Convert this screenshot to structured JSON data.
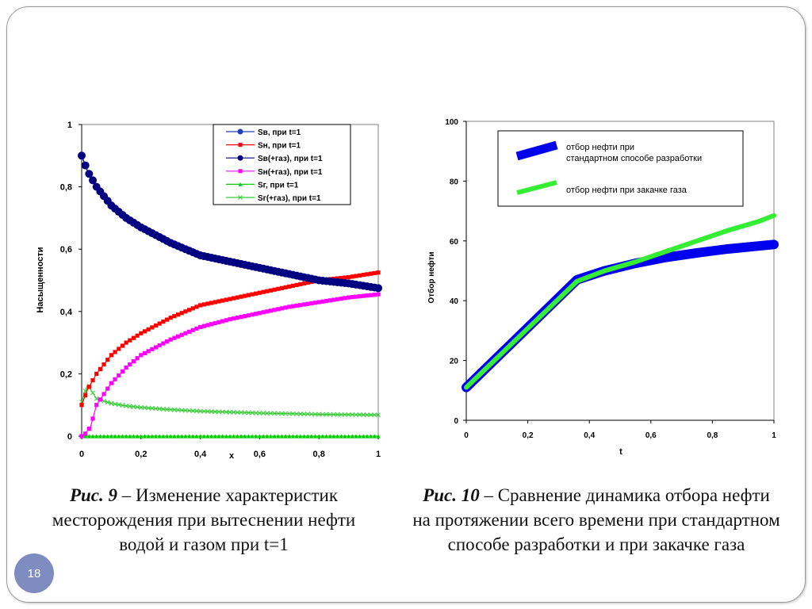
{
  "chart_data": [
    {
      "type": "line",
      "title": "",
      "xlabel": "x",
      "ylabel": "Насыщенности",
      "xlim": [
        0,
        1
      ],
      "ylim": [
        0,
        1
      ],
      "xticks": [
        "0",
        "0,2",
        "0,4",
        "0,6",
        "0,8",
        "1"
      ],
      "yticks": [
        "0",
        "0,2",
        "0,4",
        "0,6",
        "0,8",
        "1"
      ],
      "legend_position": "top-right",
      "grid": false,
      "series": [
        {
          "name": "Sв, при t=1",
          "color": "#1f3fbf",
          "marker": "circle",
          "x": [
            0,
            0.02,
            0.05,
            0.1,
            0.15,
            0.2,
            0.3,
            0.4,
            0.5,
            0.6,
            0.7,
            0.8,
            0.9,
            1.0
          ],
          "y": [
            0.9,
            0.85,
            0.8,
            0.74,
            0.7,
            0.67,
            0.62,
            0.58,
            0.56,
            0.54,
            0.52,
            0.5,
            0.49,
            0.475
          ]
        },
        {
          "name": "Sн, при t=1",
          "color": "#ff0000",
          "marker": "square",
          "x": [
            0,
            0.02,
            0.05,
            0.1,
            0.15,
            0.2,
            0.3,
            0.4,
            0.5,
            0.6,
            0.7,
            0.8,
            0.9,
            1.0
          ],
          "y": [
            0.1,
            0.15,
            0.2,
            0.26,
            0.3,
            0.33,
            0.38,
            0.42,
            0.44,
            0.46,
            0.48,
            0.5,
            0.51,
            0.525
          ]
        },
        {
          "name": "Sв(+газ), при t=1",
          "color": "#000080",
          "marker": "circle",
          "x": [
            0,
            0.02,
            0.05,
            0.1,
            0.15,
            0.2,
            0.3,
            0.4,
            0.5,
            0.6,
            0.7,
            0.8,
            0.9,
            1.0
          ],
          "y": [
            0.9,
            0.85,
            0.8,
            0.74,
            0.7,
            0.67,
            0.62,
            0.58,
            0.56,
            0.54,
            0.52,
            0.5,
            0.49,
            0.475
          ]
        },
        {
          "name": "Sн(+газ), при t=1",
          "color": "#ff00ff",
          "marker": "square",
          "x": [
            0,
            0.01,
            0.03,
            0.05,
            0.1,
            0.15,
            0.2,
            0.3,
            0.4,
            0.5,
            0.6,
            0.7,
            0.8,
            0.9,
            1.0
          ],
          "y": [
            0,
            0.005,
            0.03,
            0.1,
            0.17,
            0.22,
            0.26,
            0.31,
            0.35,
            0.375,
            0.395,
            0.415,
            0.43,
            0.445,
            0.455
          ]
        },
        {
          "name": "Sг, при t=1",
          "color": "#00cc00",
          "marker": "triangle",
          "x": [
            0,
            0.1,
            0.2,
            0.3,
            0.4,
            0.5,
            0.6,
            0.7,
            0.8,
            0.9,
            1.0
          ],
          "y": [
            0,
            0,
            0,
            0,
            0,
            0,
            0,
            0,
            0,
            0,
            0
          ]
        },
        {
          "name": "Sг(+газ), при t=1",
          "color": "#33cc33",
          "marker": "cross",
          "x": [
            0,
            0.02,
            0.05,
            0.1,
            0.15,
            0.2,
            0.3,
            0.4,
            0.5,
            0.6,
            0.7,
            0.8,
            0.9,
            1.0
          ],
          "y": [
            0.11,
            0.165,
            0.12,
            0.105,
            0.097,
            0.092,
            0.085,
            0.08,
            0.077,
            0.074,
            0.072,
            0.07,
            0.069,
            0.068
          ]
        }
      ]
    },
    {
      "type": "line",
      "title": "",
      "xlabel": "t",
      "ylabel": "Отбор нефти",
      "xlim": [
        0,
        1
      ],
      "ylim": [
        0,
        100
      ],
      "xticks": [
        "0",
        "0,2",
        "0,4",
        "0,6",
        "0,8",
        "1"
      ],
      "yticks": [
        "0",
        "20",
        "40",
        "60",
        "80",
        "100"
      ],
      "legend_position": "top-left",
      "grid": false,
      "series": [
        {
          "name": "отбор нефти при стандартном способе разработки",
          "color": "#0000ee",
          "x": [
            0,
            0.36,
            0.45,
            0.55,
            0.65,
            0.75,
            0.85,
            0.95,
            1.0
          ],
          "y": [
            11,
            47,
            50,
            52.5,
            54.5,
            56,
            57.3,
            58.3,
            58.8
          ]
        },
        {
          "name": "отбор нефти при закачке газа",
          "color": "#33ee33",
          "x": [
            0,
            0.36,
            0.45,
            0.55,
            0.65,
            0.75,
            0.85,
            0.95,
            1.0
          ],
          "y": [
            11,
            46.5,
            50,
            53,
            56.5,
            60,
            63.5,
            66.5,
            68.5
          ]
        }
      ]
    }
  ],
  "captions": {
    "left_lead": "Рис. 9",
    "left_text": " – Изменение характеристик месторождения при вытеснении нефти водой и газом при t=1",
    "right_lead": "Рис. 10",
    "right_text": " – Сравнение динамика отбора нефти на протяжении всего времени при стандартном способе разработки и при закачке газа"
  },
  "slide": {
    "page_number": "18"
  }
}
